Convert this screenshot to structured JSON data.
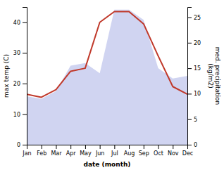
{
  "chart_data": {
    "type": "line",
    "categories": [
      "Jan",
      "Feb",
      "Mar",
      "Apr",
      "May",
      "Jun",
      "Jul",
      "Aug",
      "Sep",
      "Oct",
      "Nov",
      "Dec"
    ],
    "xlabel": "date (month)",
    "ylabel": "max temp (C)",
    "y2label": "med. precipitation\n(kg/m2)",
    "ylim": [
      0,
      45
    ],
    "yticks": [
      0,
      10,
      20,
      30,
      40
    ],
    "y2lim": [
      0,
      27
    ],
    "y2ticks": [
      0,
      5,
      10,
      15,
      20,
      25
    ],
    "series": [
      {
        "type": "area",
        "axis": "y2",
        "color": "#b0b8e8",
        "values": [
          9.5,
          9.0,
          10.5,
          15.5,
          16.0,
          14.0,
          26.5,
          26.5,
          24.5,
          15.0,
          13.0,
          13.5
        ]
      },
      {
        "type": "line",
        "color": "#c0392b",
        "values": [
          16.5,
          15.5,
          18.0,
          24.0,
          25.0,
          40.0,
          43.5,
          43.5,
          39.5,
          29.0,
          19.0,
          16.5
        ]
      }
    ]
  }
}
